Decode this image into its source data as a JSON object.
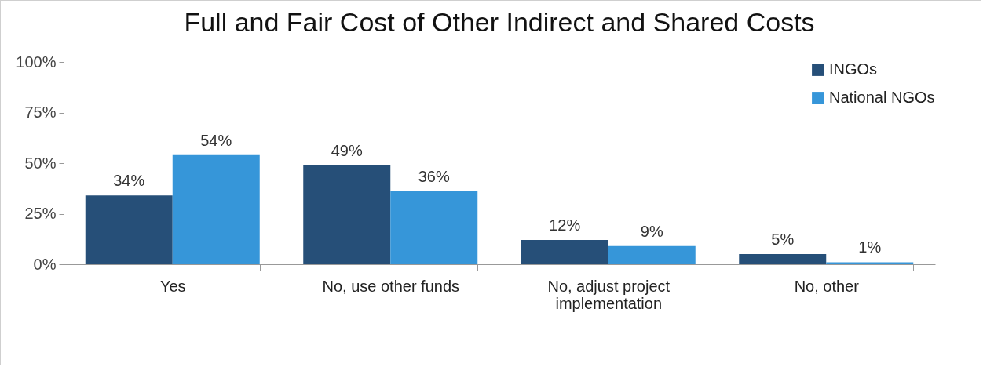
{
  "chart_data": {
    "type": "bar",
    "title": "Full and Fair Cost of Other Indirect and Shared Costs",
    "categories": [
      "Yes",
      "No, use other funds",
      "No, adjust project implementation",
      "No, other"
    ],
    "series": [
      {
        "name": "INGOs",
        "color": "#264f78",
        "values": [
          34,
          49,
          12,
          5
        ],
        "value_labels": [
          "34%",
          "49%",
          "12%",
          "5%"
        ]
      },
      {
        "name": "National NGOs",
        "color": "#3696d9",
        "values": [
          54,
          36,
          9,
          1
        ],
        "value_labels": [
          "54%",
          "36%",
          "9%",
          "1%"
        ]
      }
    ],
    "ylim": [
      0,
      100
    ],
    "yticks": [
      {
        "value": 0,
        "label": "0%"
      },
      {
        "value": 25,
        "label": "25%"
      },
      {
        "value": 50,
        "label": "50%"
      },
      {
        "value": 75,
        "label": "75%"
      },
      {
        "value": 100,
        "label": "100%"
      }
    ],
    "grid": false,
    "legend": "top right"
  }
}
